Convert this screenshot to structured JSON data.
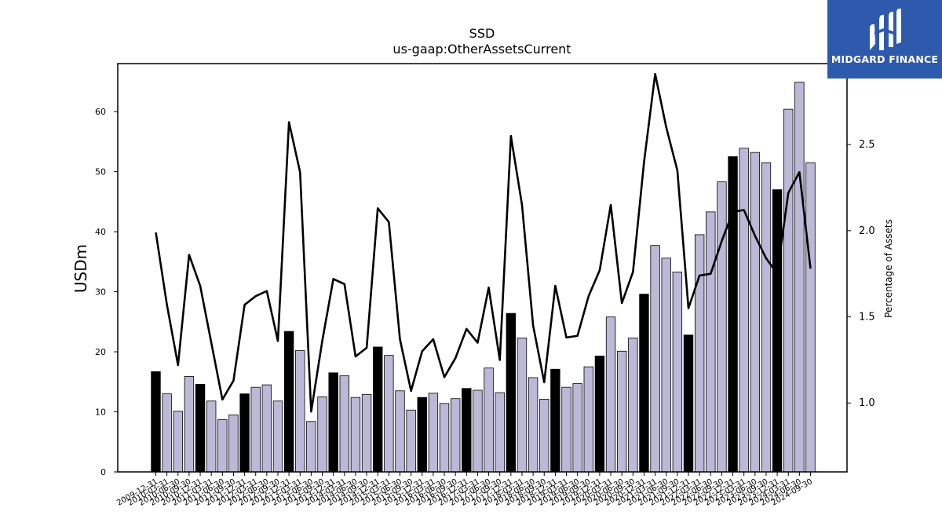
{
  "chart_data": {
    "type": "bar",
    "title": "SSD",
    "subtitle": "us-gaap:OtherAssetsCurrent",
    "ylabel": "USDm",
    "y2label": "Percentage of Assets",
    "ylim": [
      0,
      68
    ],
    "y2lim": [
      0.6,
      2.97
    ],
    "yticks": [
      0,
      10,
      20,
      30,
      40,
      50,
      60
    ],
    "y2ticks": [
      1.0,
      1.5,
      2.0,
      2.5
    ],
    "grid": false,
    "categories": [
      "2009-12-31",
      "2010-03-31",
      "2010-06-30",
      "2010-09-30",
      "2010-12-31",
      "2011-03-31",
      "2011-06-30",
      "2011-09-30",
      "2011-12-31",
      "2012-03-31",
      "2012-06-30",
      "2012-09-30",
      "2012-12-31",
      "2013-03-31",
      "2013-06-30",
      "2013-09-30",
      "2013-12-31",
      "2014-03-31",
      "2014-06-30",
      "2014-09-30",
      "2014-12-31",
      "2015-03-31",
      "2015-06-30",
      "2015-09-30",
      "2015-12-31",
      "2016-03-31",
      "2016-06-30",
      "2016-09-30",
      "2016-12-31",
      "2017-03-31",
      "2017-06-30",
      "2017-09-30",
      "2017-12-31",
      "2018-03-31",
      "2018-06-30",
      "2018-09-30",
      "2018-12-31",
      "2019-03-31",
      "2019-06-30",
      "2019-09-30",
      "2019-12-31",
      "2020-03-31",
      "2020-06-30",
      "2020-09-30",
      "2020-12-31",
      "2021-03-31",
      "2021-06-30",
      "2021-09-30",
      "2021-12-31",
      "2022-03-31",
      "2022-06-30",
      "2022-09-30",
      "2022-12-31",
      "2023-03-31",
      "2023-06-30",
      "2023-09-30",
      "2023-12-31",
      "2024-03-31",
      "2024-06-30",
      "2024-09-30"
    ],
    "series": [
      {
        "type": "bar",
        "values": [
          16.7,
          13.0,
          10.1,
          15.9,
          14.6,
          11.8,
          8.7,
          9.5,
          13.0,
          14.1,
          14.5,
          11.8,
          23.4,
          20.2,
          8.4,
          12.5,
          16.5,
          16.0,
          12.4,
          12.9,
          20.8,
          19.4,
          13.5,
          10.3,
          12.4,
          13.1,
          11.4,
          12.2,
          13.9,
          13.6,
          17.3,
          13.2,
          26.4,
          22.3,
          15.7,
          12.1,
          17.1,
          14.1,
          14.7,
          17.5,
          19.3,
          25.8,
          20.1,
          22.3,
          29.6,
          37.7,
          35.6,
          33.3,
          22.8,
          39.5,
          43.3,
          48.3,
          52.5,
          53.9,
          53.2,
          51.5,
          47.0,
          60.4,
          64.9,
          51.5
        ],
        "highlight_every": 4,
        "colors": {
          "highlight": "#000000",
          "normal": "#bcb8d8"
        }
      },
      {
        "type": "line",
        "axis": "right",
        "color": "#000000",
        "values": [
          1.99,
          1.57,
          1.22,
          1.86,
          1.68,
          1.35,
          1.02,
          1.13,
          1.57,
          1.62,
          1.65,
          1.36,
          2.63,
          2.34,
          0.95,
          1.36,
          1.72,
          1.69,
          1.27,
          1.32,
          2.13,
          2.05,
          1.37,
          1.07,
          1.3,
          1.37,
          1.15,
          1.26,
          1.43,
          1.35,
          1.67,
          1.25,
          2.55,
          2.15,
          1.45,
          1.12,
          1.68,
          1.38,
          1.39,
          1.62,
          1.77,
          2.15,
          1.58,
          1.76,
          2.4,
          2.91,
          2.6,
          2.35,
          1.55,
          1.74,
          1.75,
          1.94,
          2.11,
          2.12,
          1.97,
          1.84,
          1.75,
          2.22,
          2.34,
          1.78
        ]
      }
    ]
  },
  "logo": {
    "text": "MIDGARD FINANCE"
  }
}
